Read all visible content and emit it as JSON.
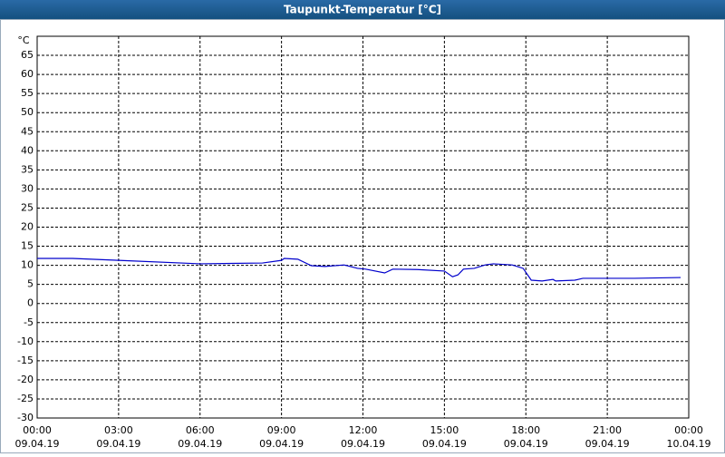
{
  "chart_data": {
    "type": "line",
    "title": "Taupunkt-Temperatur [°C]",
    "ylabel": "°C",
    "xlim": [
      0,
      24
    ],
    "xticks": [
      {
        "value": 0,
        "label": "00:00"
      },
      {
        "value": 3,
        "label": "03:00"
      },
      {
        "value": 6,
        "label": "06:00"
      },
      {
        "value": 9,
        "label": "09:00"
      },
      {
        "value": 12,
        "label": "12:00"
      },
      {
        "value": 15,
        "label": "15:00"
      },
      {
        "value": 18,
        "label": "18:00"
      },
      {
        "value": 21,
        "label": "21:00"
      },
      {
        "value": 24,
        "label": "00:00"
      }
    ],
    "xtick_dates": [
      "09.04.19",
      "09.04.19",
      "09.04.19",
      "09.04.19",
      "09.04.19",
      "09.04.19",
      "09.04.19",
      "09.04.19",
      "10.04.19"
    ],
    "ylim": [
      -30,
      70
    ],
    "yticks": [
      -30,
      -25,
      -20,
      -15,
      -10,
      -5,
      0,
      5,
      10,
      15,
      20,
      25,
      30,
      35,
      40,
      45,
      50,
      55,
      60,
      65
    ],
    "grid": true,
    "series": [
      {
        "color": "#0000cc",
        "x": [
          0,
          1.3,
          3,
          6,
          8.3,
          9,
          9.1,
          9.6,
          10.1,
          10.6,
          11.3,
          11.8,
          12.1,
          12.8,
          13.1,
          14,
          15,
          15.3,
          15.5,
          15.7,
          16.1,
          16.5,
          16.8,
          17.5,
          17.9,
          18.2,
          18.6,
          19,
          19.1,
          19.8,
          20.1,
          22,
          23.7
        ],
        "values": [
          11.8,
          11.8,
          11.3,
          10.4,
          10.6,
          11.3,
          11.8,
          11.6,
          9.9,
          9.7,
          10.1,
          9.2,
          9.0,
          8.0,
          9.0,
          8.9,
          8.5,
          7.0,
          7.5,
          9.0,
          9.2,
          10.1,
          10.4,
          10.1,
          9.2,
          6.1,
          5.9,
          6.3,
          5.9,
          6.1,
          6.6,
          6.6,
          6.8
        ]
      }
    ]
  }
}
